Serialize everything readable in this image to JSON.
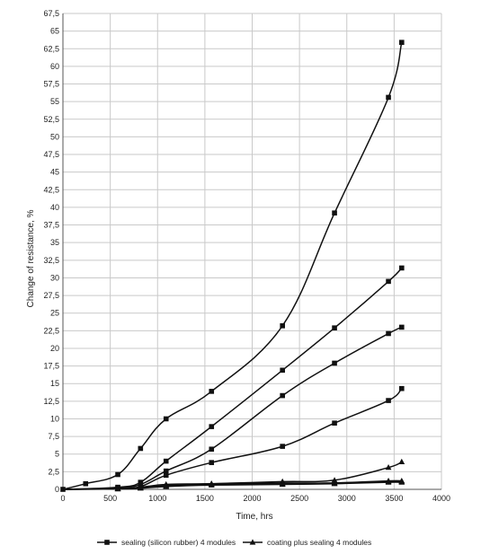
{
  "chart_data": {
    "type": "line",
    "xlabel": "Time, hrs",
    "ylabel": "Change of resistance, %",
    "xlim": [
      0,
      4000
    ],
    "ylim": [
      0,
      67.5
    ],
    "x_ticks": [
      0,
      500,
      1000,
      1500,
      2000,
      2500,
      3000,
      3500,
      4000
    ],
    "x_tick_labels": [
      "0",
      "500",
      "1000",
      "1500",
      "2000",
      "2500",
      "3000",
      "3500",
      "4000"
    ],
    "y_ticks": [
      0,
      2.5,
      5,
      7.5,
      10,
      12.5,
      15,
      17.5,
      20,
      22.5,
      25,
      27.5,
      30,
      32.5,
      35,
      37.5,
      40,
      42.5,
      45,
      47.5,
      50,
      52.5,
      55,
      57.5,
      60,
      62.5,
      65,
      67.5
    ],
    "y_tick_labels": [
      "0",
      "2,5",
      "5",
      "7,5",
      "10",
      "12,5",
      "15",
      "17,5",
      "20",
      "22,5",
      "25",
      "27,5",
      "30",
      "32,5",
      "35",
      "37,5",
      "40",
      "42,5",
      "45",
      "47,5",
      "50",
      "52,5",
      "55",
      "57,5",
      "60",
      "62,5",
      "65",
      "67,5"
    ],
    "grid": true,
    "legend_position": "bottom",
    "legend": [
      {
        "label": "sealing (silicon rubber) 4 modules",
        "marker": "square"
      },
      {
        "label": "coating plus sealing 4 modules",
        "marker": "triangle"
      }
    ],
    "series": [
      {
        "marker": "square",
        "points": [
          [
            0,
            0
          ],
          [
            240,
            0.8
          ],
          [
            580,
            2.1
          ],
          [
            820,
            5.8
          ],
          [
            1090,
            10.0
          ],
          [
            1570,
            13.9
          ],
          [
            2320,
            23.2
          ],
          [
            2870,
            39.2
          ],
          [
            3440,
            55.6
          ],
          [
            3580,
            63.4
          ]
        ]
      },
      {
        "marker": "square",
        "points": [
          [
            0,
            0
          ],
          [
            580,
            0.3
          ],
          [
            820,
            1.0
          ],
          [
            1090,
            4.0
          ],
          [
            1570,
            8.9
          ],
          [
            2320,
            16.9
          ],
          [
            2870,
            22.9
          ],
          [
            3440,
            29.5
          ],
          [
            3580,
            31.4
          ]
        ]
      },
      {
        "marker": "square",
        "points": [
          [
            0,
            0
          ],
          [
            580,
            0.2
          ],
          [
            820,
            0.7
          ],
          [
            1090,
            2.6
          ],
          [
            1570,
            5.7
          ],
          [
            2320,
            13.3
          ],
          [
            2870,
            17.9
          ],
          [
            3440,
            22.1
          ],
          [
            3580,
            23.0
          ]
        ]
      },
      {
        "marker": "square",
        "points": [
          [
            0,
            0
          ],
          [
            580,
            0.1
          ],
          [
            820,
            0.4
          ],
          [
            1090,
            2.0
          ],
          [
            1570,
            3.8
          ],
          [
            2320,
            6.1
          ],
          [
            2870,
            9.4
          ],
          [
            3440,
            12.6
          ],
          [
            3580,
            14.3
          ]
        ]
      },
      {
        "marker": "triangle",
        "points": [
          [
            0,
            0
          ],
          [
            580,
            0.1
          ],
          [
            820,
            0.3
          ],
          [
            1090,
            0.7
          ],
          [
            1570,
            0.8
          ],
          [
            2320,
            1.1
          ],
          [
            2870,
            1.3
          ],
          [
            3440,
            3.1
          ],
          [
            3580,
            3.9
          ]
        ]
      },
      {
        "marker": "triangle",
        "points": [
          [
            0,
            0
          ],
          [
            580,
            0.1
          ],
          [
            820,
            0.2
          ],
          [
            1090,
            0.6
          ],
          [
            1570,
            0.8
          ],
          [
            2320,
            0.9
          ],
          [
            2870,
            0.9
          ],
          [
            3440,
            1.2
          ],
          [
            3580,
            1.2
          ]
        ]
      },
      {
        "marker": "triangle",
        "points": [
          [
            0,
            0
          ],
          [
            580,
            0.1
          ],
          [
            820,
            0.2
          ],
          [
            1090,
            0.5
          ],
          [
            1570,
            0.7
          ],
          [
            2320,
            0.8
          ],
          [
            2870,
            0.9
          ],
          [
            3440,
            1.1
          ],
          [
            3580,
            1.1
          ]
        ]
      },
      {
        "marker": "triangle",
        "points": [
          [
            0,
            0
          ],
          [
            580,
            0.05
          ],
          [
            820,
            0.15
          ],
          [
            1090,
            0.4
          ],
          [
            1570,
            0.6
          ],
          [
            2320,
            0.7
          ],
          [
            2870,
            0.8
          ],
          [
            3440,
            1.0
          ],
          [
            3580,
            1.0
          ]
        ]
      }
    ]
  }
}
